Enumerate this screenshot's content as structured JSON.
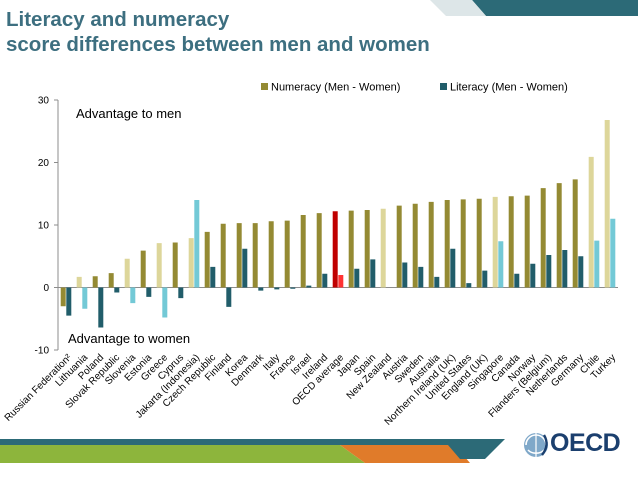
{
  "slide": {
    "title_line1": "Literacy and numeracy",
    "title_line2": "score differences between men and women",
    "annotation_men": "Advantage to men",
    "annotation_women": "Advantage to women",
    "logo_text": "OECD",
    "logo_icon": "oecd-globe-icon"
  },
  "colors": {
    "title": "#3d6f80",
    "numeracy": "#948a33",
    "literacy": "#215d6a",
    "numeracy_highlight": "#ddd69a",
    "literacy_highlight": "#73c9d6",
    "oecd_numeracy": "#c00000",
    "oecd_literacy": "#ff3333",
    "band_teal": "#2c6a77",
    "band_orange": "#e07b2a",
    "band_green": "#8db53c",
    "logo": "#1b3f6e"
  },
  "chart_data": {
    "type": "bar",
    "categories": [
      "Russian Federation²",
      "Lithuania",
      "Poland",
      "Slovak Republic",
      "Slovenia",
      "Estonia",
      "Greece",
      "Cyprus",
      "Jakarta (Indonesia)",
      "Czech Republic",
      "Finland",
      "Korea",
      "Denmark",
      "Italy",
      "France",
      "Israel",
      "Ireland",
      "OECD average",
      "Japan",
      "Spain",
      "New Zealand",
      "Austria",
      "Sweden",
      "Australia",
      "Northern Ireland (UK)",
      "United States",
      "England (UK)",
      "Singapore",
      "Canada",
      "Norway",
      "Flanders (Belgium)",
      "Netherlands",
      "Germany",
      "Chile",
      "Turkey"
    ],
    "series": [
      {
        "name": "Numeracy (Men - Women)",
        "values": [
          -3,
          1.7,
          1.8,
          2.3,
          4.6,
          5.9,
          7.1,
          7.2,
          7.9,
          8.9,
          10.2,
          10.3,
          10.3,
          10.6,
          10.7,
          11.6,
          11.9,
          12.2,
          12.3,
          12.4,
          12.6,
          13.1,
          13.4,
          13.7,
          14.0,
          14.1,
          14.2,
          14.5,
          14.6,
          14.7,
          15.9,
          16.7,
          17.3,
          20.9,
          26.8
        ]
      },
      {
        "name": "Literacy (Men - Women)",
        "values": [
          -4.5,
          -3.4,
          -6.4,
          -0.8,
          -2.5,
          -1.5,
          -4.8,
          -1.7,
          14.0,
          3.3,
          -3.1,
          6.2,
          -0.5,
          -0.3,
          -0.2,
          0.3,
          2.2,
          2.0,
          3.0,
          4.5,
          0.0,
          4.0,
          3.3,
          1.7,
          6.2,
          0.7,
          2.7,
          7.4,
          2.2,
          3.8,
          5.2,
          6.0,
          5.0,
          7.5,
          11.0
        ]
      }
    ],
    "highlight": {
      "light": [
        "Lithuania",
        "Slovenia",
        "Greece",
        "Jakarta (Indonesia)",
        "New Zealand",
        "Singapore",
        "Chile",
        "Turkey"
      ],
      "oecd_average": "OECD average"
    },
    "ylim": [
      -10,
      30
    ],
    "yticks": [
      "-10",
      "0",
      "10",
      "20",
      "30"
    ],
    "legend_position": "top-right",
    "grid": false,
    "xlabel": "",
    "ylabel": ""
  }
}
